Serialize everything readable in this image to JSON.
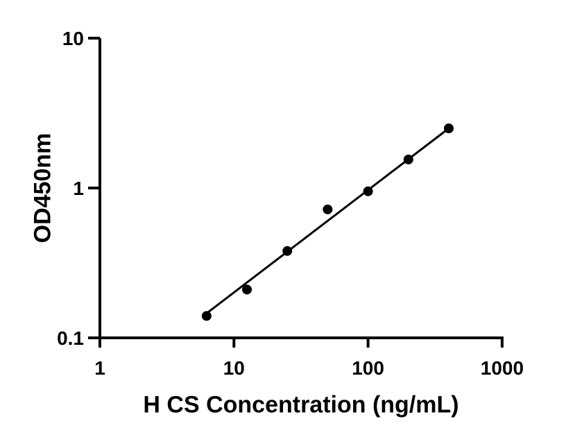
{
  "figure": {
    "background_color": "#ffffff",
    "foreground_color": "#000000"
  },
  "chart_data": {
    "type": "scatter",
    "title": "",
    "xlabel": "H CS Concentration (ng/mL)",
    "ylabel": "OD450nm",
    "x_scale": "log",
    "y_scale": "log",
    "xlim": [
      1,
      1000
    ],
    "ylim": [
      0.1,
      10
    ],
    "grid": false,
    "legend": false,
    "x_ticks": [
      {
        "value": 1,
        "label": "1"
      },
      {
        "value": 10,
        "label": "10"
      },
      {
        "value": 100,
        "label": "100"
      },
      {
        "value": 1000,
        "label": "1000"
      }
    ],
    "y_ticks": [
      {
        "value": 0.1,
        "label": "0.1"
      },
      {
        "value": 1,
        "label": "1"
      },
      {
        "value": 10,
        "label": "10"
      }
    ],
    "series": [
      {
        "name": "standard-curve-points",
        "marker": "filled-circle",
        "color": "#000000",
        "x": [
          6.25,
          12.5,
          25,
          50,
          100,
          200,
          400
        ],
        "y": [
          0.14,
          0.21,
          0.38,
          0.72,
          0.95,
          1.55,
          2.5
        ]
      }
    ],
    "trend_line": {
      "name": "linear-fit-line",
      "color": "#000000",
      "x1": 6.2,
      "y1": 0.145,
      "x2": 400,
      "y2": 2.5
    }
  }
}
